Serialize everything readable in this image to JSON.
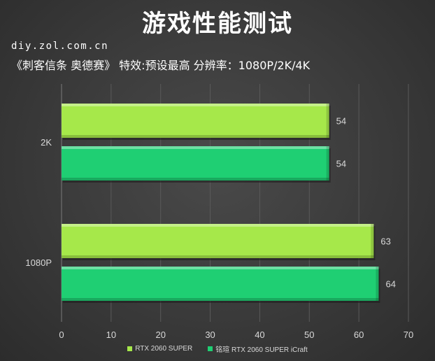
{
  "header": {
    "title": "游戏性能测试",
    "source": "diy.zol.com.cn",
    "subtitle": "《刺客信条 奥德赛》  特效:预设最高  分辨率：1080P/2K/4K"
  },
  "colors": {
    "series1": "#a6e84a",
    "series2": "#1fcf73",
    "text": "#d9d9d9",
    "grid": "#5a5a5a"
  },
  "chart_data": {
    "type": "bar",
    "orientation": "horizontal",
    "categories": [
      "2K",
      "1080P"
    ],
    "series": [
      {
        "name": "RTX 2060 SUPER",
        "values": [
          54,
          63
        ]
      },
      {
        "name": "铭瑄 RTX 2060 SUPER iCraft",
        "values": [
          54,
          64
        ]
      }
    ],
    "xlim": [
      0,
      70
    ],
    "xticks": [
      0,
      10,
      20,
      30,
      40,
      50,
      60,
      70
    ],
    "grid": true,
    "legend": "bottom"
  }
}
